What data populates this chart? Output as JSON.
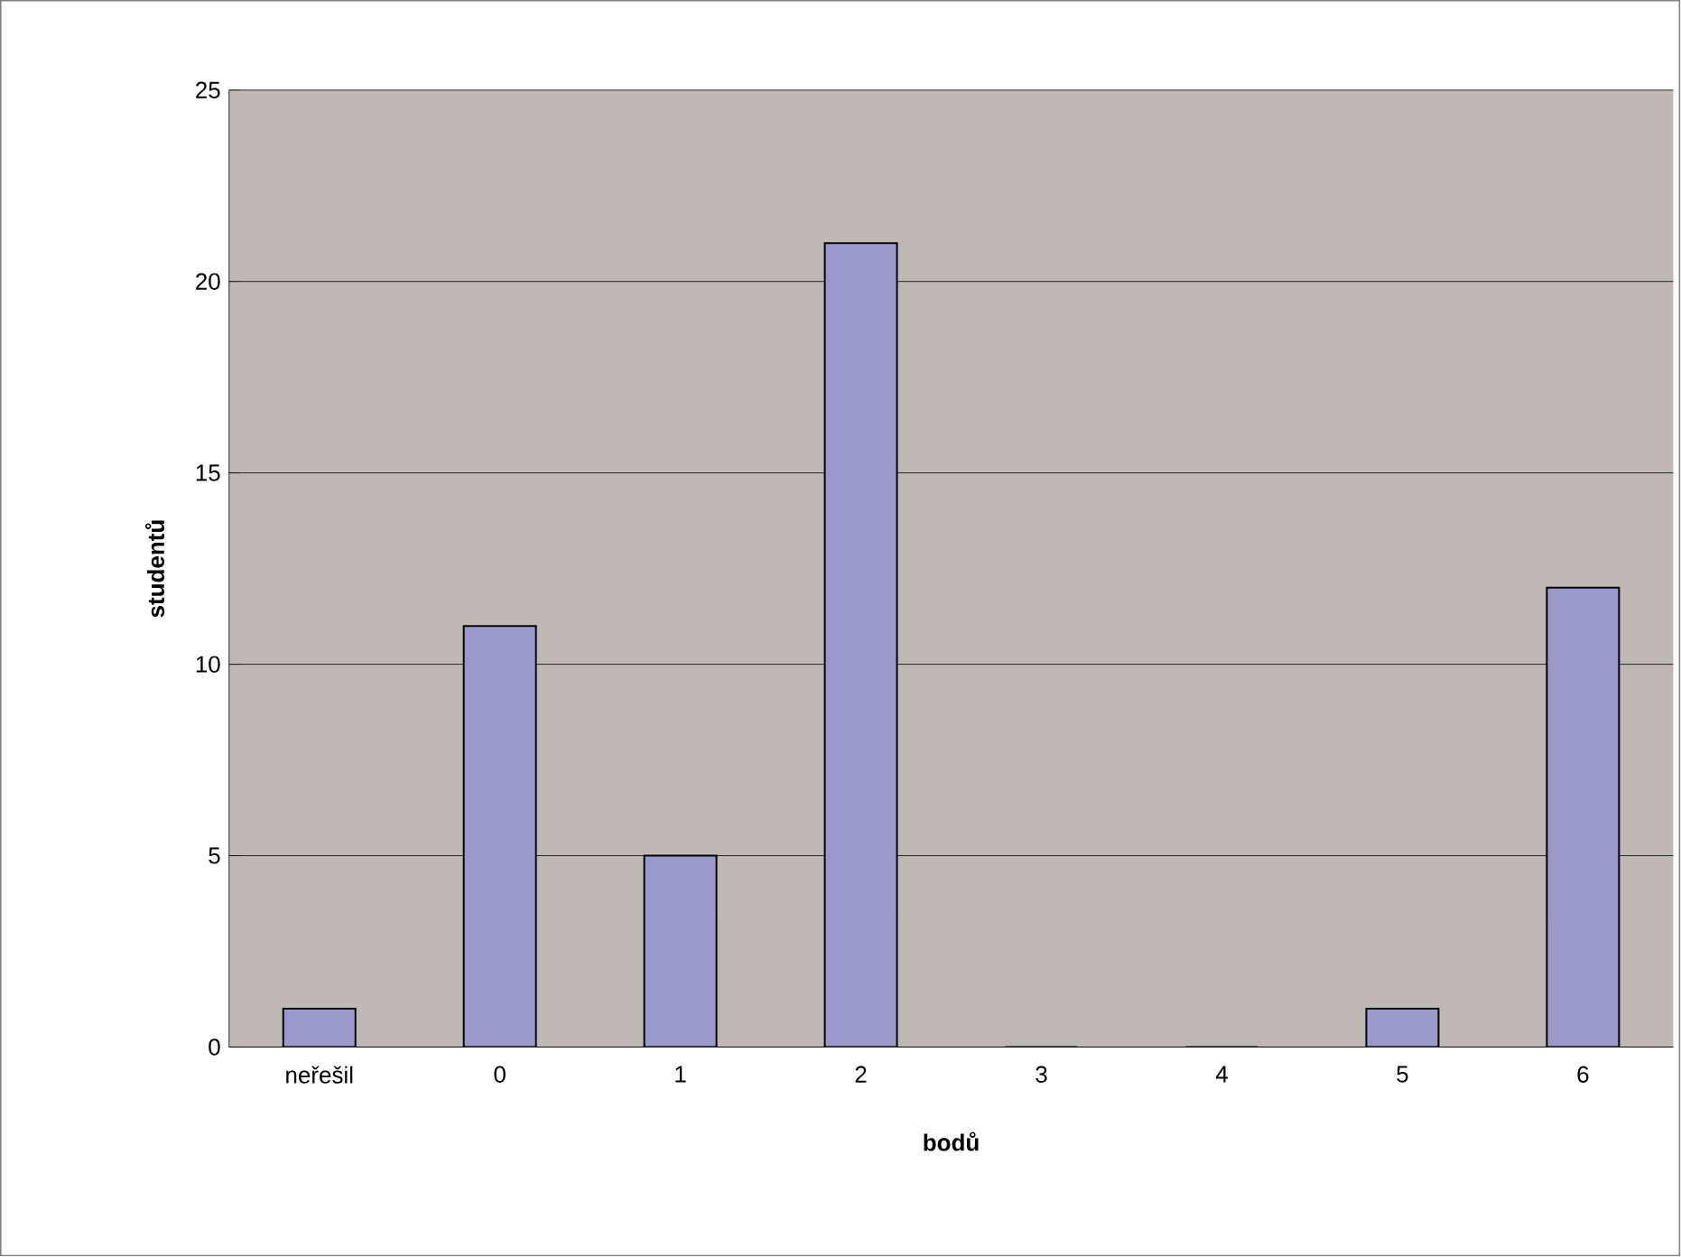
{
  "chart_data": {
    "type": "bar",
    "xlabel": "bodů",
    "ylabel": "studentů",
    "categories": [
      "neřešil",
      "0",
      "1",
      "2",
      "3",
      "4",
      "5",
      "6"
    ],
    "values": [
      1,
      11,
      5,
      21,
      0,
      0,
      1,
      12
    ],
    "color": "#9999cc",
    "ylim": [
      0,
      25
    ],
    "yticks": [
      0,
      5,
      10,
      15,
      20,
      25
    ],
    "grid": "y"
  }
}
